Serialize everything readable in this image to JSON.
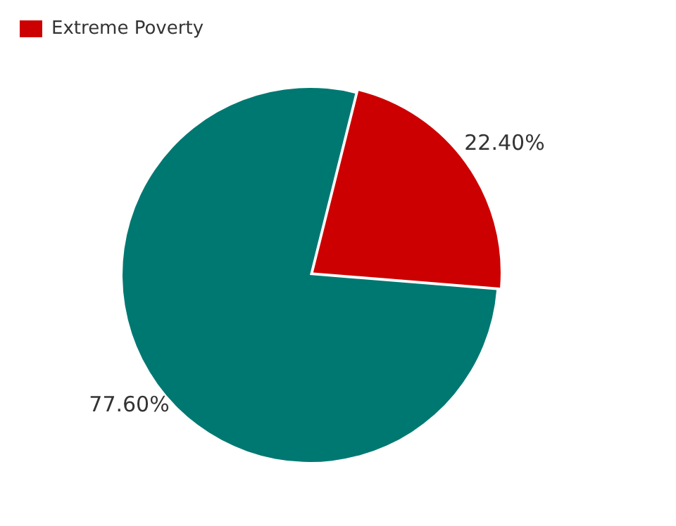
{
  "chart_data": {
    "type": "pie",
    "categories": [
      "Extreme Poverty",
      null
    ],
    "values": [
      22.4,
      77.6
    ],
    "colors": [
      "#cc0000",
      "#007872"
    ],
    "value_labels": [
      "22.40%",
      "77.60%"
    ],
    "legend": "top left"
  }
}
